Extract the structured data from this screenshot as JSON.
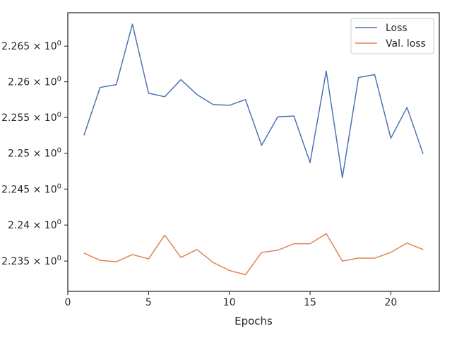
{
  "chart_data": {
    "type": "line",
    "xlabel": "Epochs",
    "ylabel": "",
    "title": "",
    "xlim": [
      0,
      23
    ],
    "ylim": [
      2.2308,
      2.2697
    ],
    "y_scale": "log",
    "x_ticks": [
      0,
      5,
      10,
      15,
      20
    ],
    "x_tick_labels": [
      "0",
      "5",
      "10",
      "15",
      "20"
    ],
    "y_ticks": [
      2.235,
      2.24,
      2.245,
      2.25,
      2.255,
      2.26,
      2.265
    ],
    "y_tick_labels": [
      {
        "mantissa": "2.235",
        "base": "10",
        "exp": "0"
      },
      {
        "mantissa": "2.24",
        "base": "10",
        "exp": "0"
      },
      {
        "mantissa": "2.245",
        "base": "10",
        "exp": "0"
      },
      {
        "mantissa": "2.25",
        "base": "10",
        "exp": "0"
      },
      {
        "mantissa": "2.255",
        "base": "10",
        "exp": "0"
      },
      {
        "mantissa": "2.26",
        "base": "10",
        "exp": "0"
      },
      {
        "mantissa": "2.265",
        "base": "10",
        "exp": "0"
      }
    ],
    "times_sign": "×",
    "grid": false,
    "legend_position": "top-right",
    "x": [
      1,
      2,
      3,
      4,
      5,
      6,
      7,
      8,
      9,
      10,
      11,
      12,
      13,
      14,
      15,
      16,
      17,
      18,
      19,
      20,
      21,
      22
    ],
    "series": [
      {
        "name": "Loss",
        "color": "#4c72b0",
        "values": [
          2.2525,
          2.2592,
          2.2596,
          2.2681,
          2.2584,
          2.2579,
          2.2603,
          2.2582,
          2.2568,
          2.2567,
          2.2575,
          2.2511,
          2.2551,
          2.2552,
          2.2487,
          2.2615,
          2.2466,
          2.2606,
          2.261,
          2.2521,
          2.2564,
          2.2499
        ]
      },
      {
        "name": "Val. loss",
        "color": "#dd8452",
        "values": [
          2.2361,
          2.2351,
          2.2349,
          2.2359,
          2.2353,
          2.2386,
          2.2355,
          2.2366,
          2.2348,
          2.2337,
          2.2331,
          2.2362,
          2.2365,
          2.2374,
          2.2374,
          2.2388,
          2.235,
          2.2354,
          2.2354,
          2.2362,
          2.2375,
          2.2366
        ]
      }
    ]
  }
}
